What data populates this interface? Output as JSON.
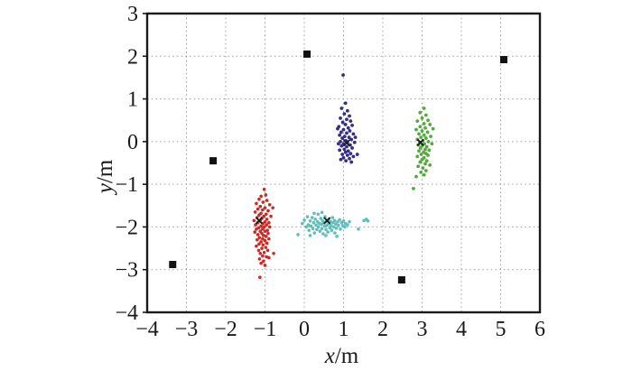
{
  "figure": {
    "background": "#ffffff",
    "frame_color": "#1a1a1a",
    "grid_color": "#9e9e9e"
  },
  "chart_data": {
    "type": "scatter",
    "title": "",
    "xlabel": "x/m",
    "ylabel": "y/m",
    "xlim": [
      -4,
      6
    ],
    "ylim": [
      -4,
      3
    ],
    "x_ticks": [
      -4,
      -3,
      -2,
      -1,
      0,
      1,
      2,
      3,
      4,
      5,
      6
    ],
    "y_ticks": [
      -4,
      -3,
      -2,
      -1,
      0,
      1,
      2,
      3
    ],
    "grid": true,
    "legend": false,
    "series": [
      {
        "name": "anchor-nodes",
        "marker": "square",
        "color": "#111111",
        "size": 8,
        "points": [
          [
            -3.35,
            -2.88
          ],
          [
            -2.32,
            -0.45
          ],
          [
            0.07,
            2.05
          ],
          [
            2.48,
            -3.24
          ],
          [
            5.08,
            1.92
          ]
        ]
      },
      {
        "name": "cluster-red",
        "marker": "dot",
        "color": "#c92a25",
        "size": 3.6,
        "points": [
          [
            -1.02,
            -1.12
          ],
          [
            -0.98,
            -1.25
          ],
          [
            -1.1,
            -1.28
          ],
          [
            -1.15,
            -1.35
          ],
          [
            -0.95,
            -1.38
          ],
          [
            -1.05,
            -1.42
          ],
          [
            -1.22,
            -1.45
          ],
          [
            -0.88,
            -1.48
          ],
          [
            -1.12,
            -1.52
          ],
          [
            -1.0,
            -1.55
          ],
          [
            -0.8,
            -1.55
          ],
          [
            -1.18,
            -1.58
          ],
          [
            -1.06,
            -1.6
          ],
          [
            -0.92,
            -1.62
          ],
          [
            -1.25,
            -1.65
          ],
          [
            -1.1,
            -1.68
          ],
          [
            -0.97,
            -1.7
          ],
          [
            -1.15,
            -1.72
          ],
          [
            -1.03,
            -1.75
          ],
          [
            -0.85,
            -1.75
          ],
          [
            -1.2,
            -1.78
          ],
          [
            -1.08,
            -1.8
          ],
          [
            -0.95,
            -1.82
          ],
          [
            -1.28,
            -1.85
          ],
          [
            -1.12,
            -1.85
          ],
          [
            -1.0,
            -1.88
          ],
          [
            -0.9,
            -1.9
          ],
          [
            -1.18,
            -1.9
          ],
          [
            -1.05,
            -1.92
          ],
          [
            -1.24,
            -1.95
          ],
          [
            -0.96,
            -1.95
          ],
          [
            -1.1,
            -1.98
          ],
          [
            -1.02,
            -2.0
          ],
          [
            -0.88,
            -2.0
          ],
          [
            -1.16,
            -2.02
          ],
          [
            -1.06,
            -2.05
          ],
          [
            -1.22,
            -2.05
          ],
          [
            -0.94,
            -2.08
          ],
          [
            -1.12,
            -2.1
          ],
          [
            -1.0,
            -2.1
          ],
          [
            -1.26,
            -2.12
          ],
          [
            -1.08,
            -2.15
          ],
          [
            -0.92,
            -2.15
          ],
          [
            -1.18,
            -2.18
          ],
          [
            -1.04,
            -2.2
          ],
          [
            -0.97,
            -2.22
          ],
          [
            -1.14,
            -2.25
          ],
          [
            -1.06,
            -2.28
          ],
          [
            -0.9,
            -2.28
          ],
          [
            -1.2,
            -2.3
          ],
          [
            -1.0,
            -2.32
          ],
          [
            -1.1,
            -2.35
          ],
          [
            -0.95,
            -2.38
          ],
          [
            -1.15,
            -2.4
          ],
          [
            -1.05,
            -2.42
          ],
          [
            -1.22,
            -2.45
          ],
          [
            -0.98,
            -2.48
          ],
          [
            -1.08,
            -2.5
          ],
          [
            -1.16,
            -2.55
          ],
          [
            -0.93,
            -2.55
          ],
          [
            -1.02,
            -2.6
          ],
          [
            -1.12,
            -2.62
          ],
          [
            -0.78,
            -2.62
          ],
          [
            -1.06,
            -2.68
          ],
          [
            -0.96,
            -2.7
          ],
          [
            -0.9,
            -2.72
          ],
          [
            -1.14,
            -2.75
          ],
          [
            -1.04,
            -2.8
          ],
          [
            -1.1,
            -2.85
          ],
          [
            -1.0,
            -2.9
          ],
          [
            -1.13,
            -3.18
          ]
        ]
      },
      {
        "name": "cluster-cyan",
        "marker": "dot",
        "color": "#60bebc",
        "size": 3.6,
        "points": [
          [
            -0.16,
            -2.18
          ],
          [
            -0.05,
            -1.92
          ],
          [
            0.0,
            -1.84
          ],
          [
            0.05,
            -2.0
          ],
          [
            0.08,
            -1.76
          ],
          [
            0.1,
            -1.95
          ],
          [
            0.12,
            -2.08
          ],
          [
            0.15,
            -1.86
          ],
          [
            0.15,
            -2.2
          ],
          [
            0.17,
            -1.98
          ],
          [
            0.2,
            -1.78
          ],
          [
            0.22,
            -2.04
          ],
          [
            0.24,
            -1.9
          ],
          [
            0.25,
            -1.68
          ],
          [
            0.26,
            -2.14
          ],
          [
            0.28,
            -1.82
          ],
          [
            0.3,
            -1.96
          ],
          [
            0.32,
            -2.06
          ],
          [
            0.34,
            -1.88
          ],
          [
            0.35,
            -1.7
          ],
          [
            0.36,
            -2.0
          ],
          [
            0.38,
            -1.92
          ],
          [
            0.4,
            -2.1
          ],
          [
            0.42,
            -1.8
          ],
          [
            0.44,
            -1.94
          ],
          [
            0.45,
            -1.66
          ],
          [
            0.45,
            -2.04
          ],
          [
            0.47,
            -1.86
          ],
          [
            0.48,
            -2.16
          ],
          [
            0.5,
            -1.9
          ],
          [
            0.52,
            -1.98
          ],
          [
            0.53,
            -1.76
          ],
          [
            0.55,
            -2.06
          ],
          [
            0.55,
            -2.2
          ],
          [
            0.56,
            -1.88
          ],
          [
            0.58,
            -1.96
          ],
          [
            0.6,
            -2.12
          ],
          [
            0.62,
            -1.82
          ],
          [
            0.63,
            -1.92
          ],
          [
            0.65,
            -2.02
          ],
          [
            0.67,
            -1.87
          ],
          [
            0.68,
            -1.97
          ],
          [
            0.7,
            -2.08
          ],
          [
            0.72,
            -1.78
          ],
          [
            0.73,
            -1.9
          ],
          [
            0.75,
            -2.0
          ],
          [
            0.77,
            -1.85
          ],
          [
            0.78,
            -2.14
          ],
          [
            0.8,
            -1.93
          ],
          [
            0.82,
            -2.03
          ],
          [
            0.83,
            -2.22
          ],
          [
            0.85,
            -1.88
          ],
          [
            0.87,
            -1.96
          ],
          [
            0.9,
            -1.83
          ],
          [
            0.92,
            -2.05
          ],
          [
            0.95,
            -1.9
          ],
          [
            0.98,
            -1.97
          ],
          [
            1.0,
            -1.86
          ],
          [
            1.03,
            -2.0
          ],
          [
            1.05,
            -1.92
          ],
          [
            1.1,
            -1.95
          ],
          [
            1.15,
            -1.88
          ],
          [
            1.38,
            -2.05
          ],
          [
            1.52,
            -1.85
          ],
          [
            1.58,
            -1.82
          ],
          [
            1.62,
            -1.86
          ]
        ]
      },
      {
        "name": "cluster-purple",
        "marker": "dot",
        "color": "#352e87",
        "size": 3.8,
        "points": [
          [
            0.99,
            1.56
          ],
          [
            1.05,
            0.9
          ],
          [
            0.95,
            0.78
          ],
          [
            1.1,
            0.72
          ],
          [
            1.02,
            0.65
          ],
          [
            1.15,
            0.6
          ],
          [
            0.92,
            0.55
          ],
          [
            1.08,
            0.52
          ],
          [
            1.18,
            0.48
          ],
          [
            0.98,
            0.45
          ],
          [
            1.05,
            0.4
          ],
          [
            1.22,
            0.38
          ],
          [
            0.88,
            0.35
          ],
          [
            1.12,
            0.32
          ],
          [
            0.85,
            0.3
          ],
          [
            1.0,
            0.28
          ],
          [
            1.16,
            0.25
          ],
          [
            0.94,
            0.22
          ],
          [
            1.08,
            0.2
          ],
          [
            1.25,
            0.18
          ],
          [
            0.9,
            0.15
          ],
          [
            1.03,
            0.12
          ],
          [
            1.14,
            0.1
          ],
          [
            1.3,
            0.1
          ],
          [
            0.97,
            0.08
          ],
          [
            1.2,
            0.05
          ],
          [
            1.06,
            0.02
          ],
          [
            0.92,
            0.0
          ],
          [
            1.1,
            -0.02
          ],
          [
            1.28,
            -0.02
          ],
          [
            1.0,
            -0.05
          ],
          [
            0.87,
            -0.05
          ],
          [
            1.17,
            -0.08
          ],
          [
            0.95,
            -0.1
          ],
          [
            1.08,
            -0.12
          ],
          [
            1.22,
            -0.15
          ],
          [
            1.02,
            -0.18
          ],
          [
            0.9,
            -0.2
          ],
          [
            1.12,
            -0.22
          ],
          [
            1.05,
            -0.25
          ],
          [
            1.18,
            -0.28
          ],
          [
            0.97,
            -0.3
          ],
          [
            1.35,
            -0.3
          ],
          [
            1.1,
            -0.32
          ],
          [
            1.25,
            -0.35
          ],
          [
            1.0,
            -0.38
          ],
          [
            1.15,
            -0.4
          ],
          [
            0.93,
            -0.42
          ],
          [
            1.06,
            -0.45
          ],
          [
            1.2,
            -0.48
          ]
        ]
      },
      {
        "name": "cluster-green",
        "marker": "dot",
        "color": "#55a93f",
        "size": 3.8,
        "points": [
          [
            3.05,
            0.78
          ],
          [
            2.95,
            0.68
          ],
          [
            3.1,
            0.62
          ],
          [
            3.0,
            0.55
          ],
          [
            3.15,
            0.5
          ],
          [
            2.88,
            0.48
          ],
          [
            3.05,
            0.42
          ],
          [
            3.2,
            0.4
          ],
          [
            2.95,
            0.35
          ],
          [
            3.08,
            0.32
          ],
          [
            3.28,
            0.3
          ],
          [
            2.85,
            0.28
          ],
          [
            3.0,
            0.25
          ],
          [
            3.14,
            0.22
          ],
          [
            2.92,
            0.18
          ],
          [
            3.05,
            0.15
          ],
          [
            3.22,
            0.12
          ],
          [
            2.97,
            0.1
          ],
          [
            3.1,
            0.08
          ],
          [
            2.88,
            0.05
          ],
          [
            3.02,
            0.02
          ],
          [
            3.16,
            0.0
          ],
          [
            2.94,
            -0.02
          ],
          [
            3.06,
            -0.05
          ],
          [
            3.25,
            -0.05
          ],
          [
            2.9,
            -0.08
          ],
          [
            3.0,
            -0.1
          ],
          [
            3.12,
            -0.12
          ],
          [
            2.96,
            -0.15
          ],
          [
            3.08,
            -0.18
          ],
          [
            3.18,
            -0.2
          ],
          [
            2.92,
            -0.22
          ],
          [
            3.04,
            -0.25
          ],
          [
            3.1,
            -0.28
          ],
          [
            2.98,
            -0.3
          ],
          [
            3.15,
            -0.32
          ],
          [
            2.88,
            -0.35
          ],
          [
            3.05,
            -0.38
          ],
          [
            3.0,
            -0.42
          ],
          [
            3.12,
            -0.45
          ],
          [
            2.95,
            -0.48
          ],
          [
            3.08,
            -0.52
          ],
          [
            3.2,
            -0.55
          ],
          [
            2.9,
            -0.58
          ],
          [
            3.02,
            -0.62
          ],
          [
            3.1,
            -0.68
          ],
          [
            2.97,
            -0.72
          ],
          [
            3.05,
            -0.78
          ],
          [
            2.85,
            -0.82
          ],
          [
            2.78,
            -1.1
          ]
        ]
      },
      {
        "name": "cluster-centers",
        "marker": "cross",
        "color": "#1a1a1a",
        "size": 7,
        "points": [
          [
            -1.15,
            -1.85
          ],
          [
            0.58,
            -1.85
          ],
          [
            1.08,
            -0.03
          ],
          [
            2.96,
            -0.02
          ]
        ]
      }
    ]
  }
}
